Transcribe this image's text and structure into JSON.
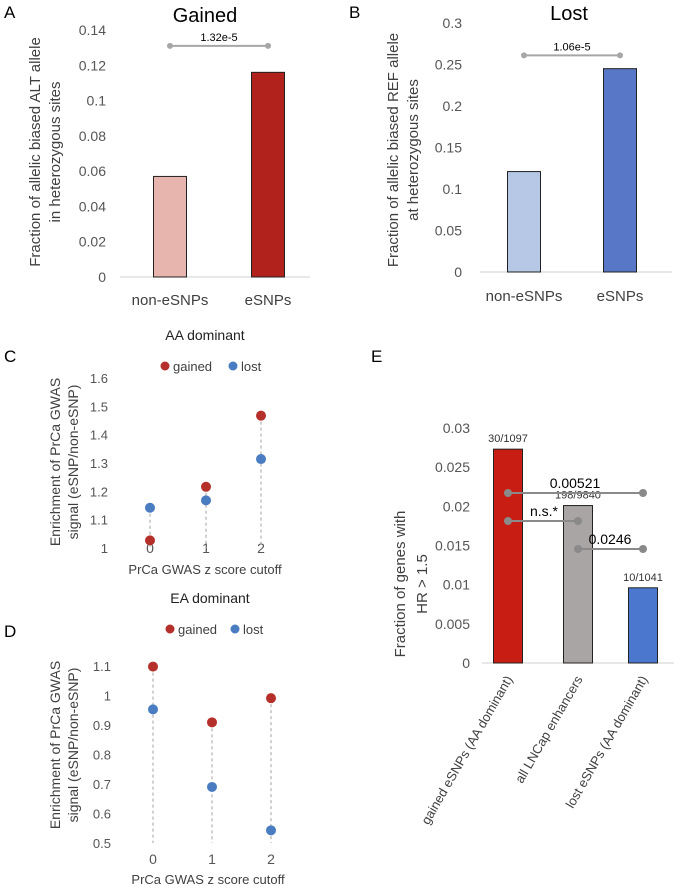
{
  "chart_data": [
    {
      "panel": "A",
      "type": "bar",
      "title": "Gained",
      "ylabel": [
        "Fraction of allelic biased ALT allele",
        "in heterozygous sites"
      ],
      "categories": [
        "non-eSNPs",
        "eSNPs"
      ],
      "values": [
        0.057,
        0.116
      ],
      "colors": [
        "#e8b4ae",
        "#b0221b"
      ],
      "ylim": [
        0,
        0.14
      ],
      "yticks": [
        "0",
        "0.02",
        "0.04",
        "0.06",
        "0.08",
        "0.1",
        "0.12",
        "0.14"
      ],
      "significance": [
        {
          "from": 0,
          "to": 1,
          "label": "1.32e-5",
          "y": 0.131
        }
      ]
    },
    {
      "panel": "B",
      "type": "bar",
      "title": "Lost",
      "ylabel": [
        "Fraction of allelic biased REF allele",
        "at heterozygous sites"
      ],
      "categories": [
        "non-eSNPs",
        "eSNPs"
      ],
      "values": [
        0.121,
        0.245
      ],
      "colors": [
        "#b7c7e6",
        "#5877c6"
      ],
      "ylim": [
        0,
        0.3
      ],
      "yticks": [
        "0",
        "0.05",
        "0.1",
        "0.15",
        "0.2",
        "0.25",
        "0.3"
      ],
      "significance": [
        {
          "from": 0,
          "to": 1,
          "label": "1.06e-5",
          "y": 0.261
        }
      ]
    },
    {
      "panel": "C",
      "type": "scatter",
      "title": "AA dominant",
      "ylabel": [
        "Enrichment of PrCa GWAS",
        "signal (eSNP/non-eSNP)"
      ],
      "xlabel": "PrCa GWAS z score cutoff",
      "x": [
        "0",
        "1",
        "2"
      ],
      "series": [
        {
          "name": "gained",
          "color": "#b5302a",
          "values": [
            1.027,
            1.216,
            1.467
          ]
        },
        {
          "name": "lost",
          "color": "#4a7cc1",
          "values": [
            1.142,
            1.168,
            1.314
          ]
        }
      ],
      "ylim": [
        1,
        1.6
      ],
      "yticks": [
        "1",
        "1.1",
        "1.2",
        "1.3",
        "1.4",
        "1.5",
        "1.6"
      ]
    },
    {
      "panel": "D",
      "type": "scatter",
      "title": "EA dominant",
      "ylabel": [
        "Enrichment of PrCa GWAS",
        "signal (eSNP/non-eSNP)"
      ],
      "xlabel": "PrCa GWAS z score cutoff",
      "x": [
        "0",
        "1",
        "2"
      ],
      "series": [
        {
          "name": "gained",
          "color": "#b5302a",
          "values": [
            1.098,
            0.909,
            0.991
          ]
        },
        {
          "name": "lost",
          "color": "#4a7cc1",
          "values": [
            0.953,
            0.69,
            0.543
          ]
        }
      ],
      "ylim": [
        0.5,
        1.1
      ],
      "yticks": [
        "0.5",
        "0.6",
        "0.7",
        "0.8",
        "0.9",
        "1",
        "1.1"
      ]
    },
    {
      "panel": "E",
      "type": "bar",
      "title": "",
      "ylabel": [
        "Fraction of genes with",
        "HR > 1.5"
      ],
      "categories": [
        "gained eSNPs (AA dominant)",
        "all LNCap enhancers",
        "lost eSNPs (AA dominant)"
      ],
      "values": [
        0.0273,
        0.0201,
        0.0096
      ],
      "bar_labels": [
        "30/1097",
        "198/9840",
        "10/1041"
      ],
      "colors": [
        "#c81d12",
        "#aaa5a5",
        "#4c77cf"
      ],
      "ylim": [
        0,
        0.03
      ],
      "yticks": [
        "0",
        "0.005",
        "0.01",
        "0.015",
        "0.02",
        "0.025",
        "0.03"
      ],
      "significance": [
        {
          "from": 0,
          "to": 2,
          "label": "0.00521"
        },
        {
          "from": 0,
          "to": 1,
          "label": "n.s.*"
        },
        {
          "from": 1,
          "to": 2,
          "label": "0.0246"
        }
      ]
    }
  ]
}
